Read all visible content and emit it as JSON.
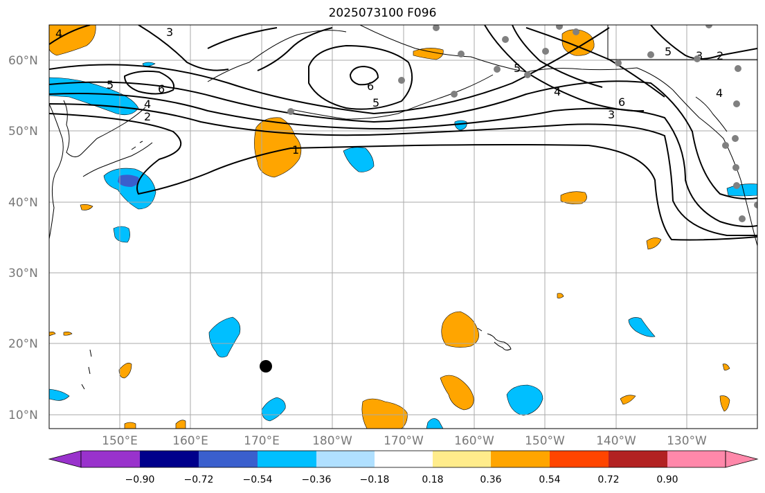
{
  "title": "2025073100 F096",
  "map": {
    "lat_labels": [
      "60°N",
      "50°N",
      "40°N",
      "30°N",
      "20°N",
      "10°N"
    ],
    "lon_labels": [
      "150°E",
      "160°E",
      "170°E",
      "180°W",
      "170°W",
      "160°W",
      "150°W",
      "140°W",
      "130°W"
    ],
    "contour_labels": [
      "4",
      "3",
      "5",
      "6",
      "4",
      "2",
      "1",
      "6",
      "5",
      "5",
      "4",
      "6",
      "3",
      "5",
      "4",
      "3",
      "2"
    ],
    "colors": {
      "grid": "#aaaaaa",
      "coast": "#000000",
      "contour": "#000000",
      "station": "#808080",
      "marker": "#000000"
    }
  },
  "colorbar": {
    "ticks": [
      "−0.90",
      "−0.72",
      "−0.54",
      "−0.36",
      "−0.18",
      "0.18",
      "0.36",
      "0.54",
      "0.72",
      "0.90"
    ],
    "colors": [
      "#9932cc",
      "#00008b",
      "#3a5fcd",
      "#00bfff",
      "#b0e0ff",
      "#ffffff",
      "#ffec8b",
      "#ffa500",
      "#ff4500",
      "#b22222",
      "#ff88aa"
    ]
  }
}
